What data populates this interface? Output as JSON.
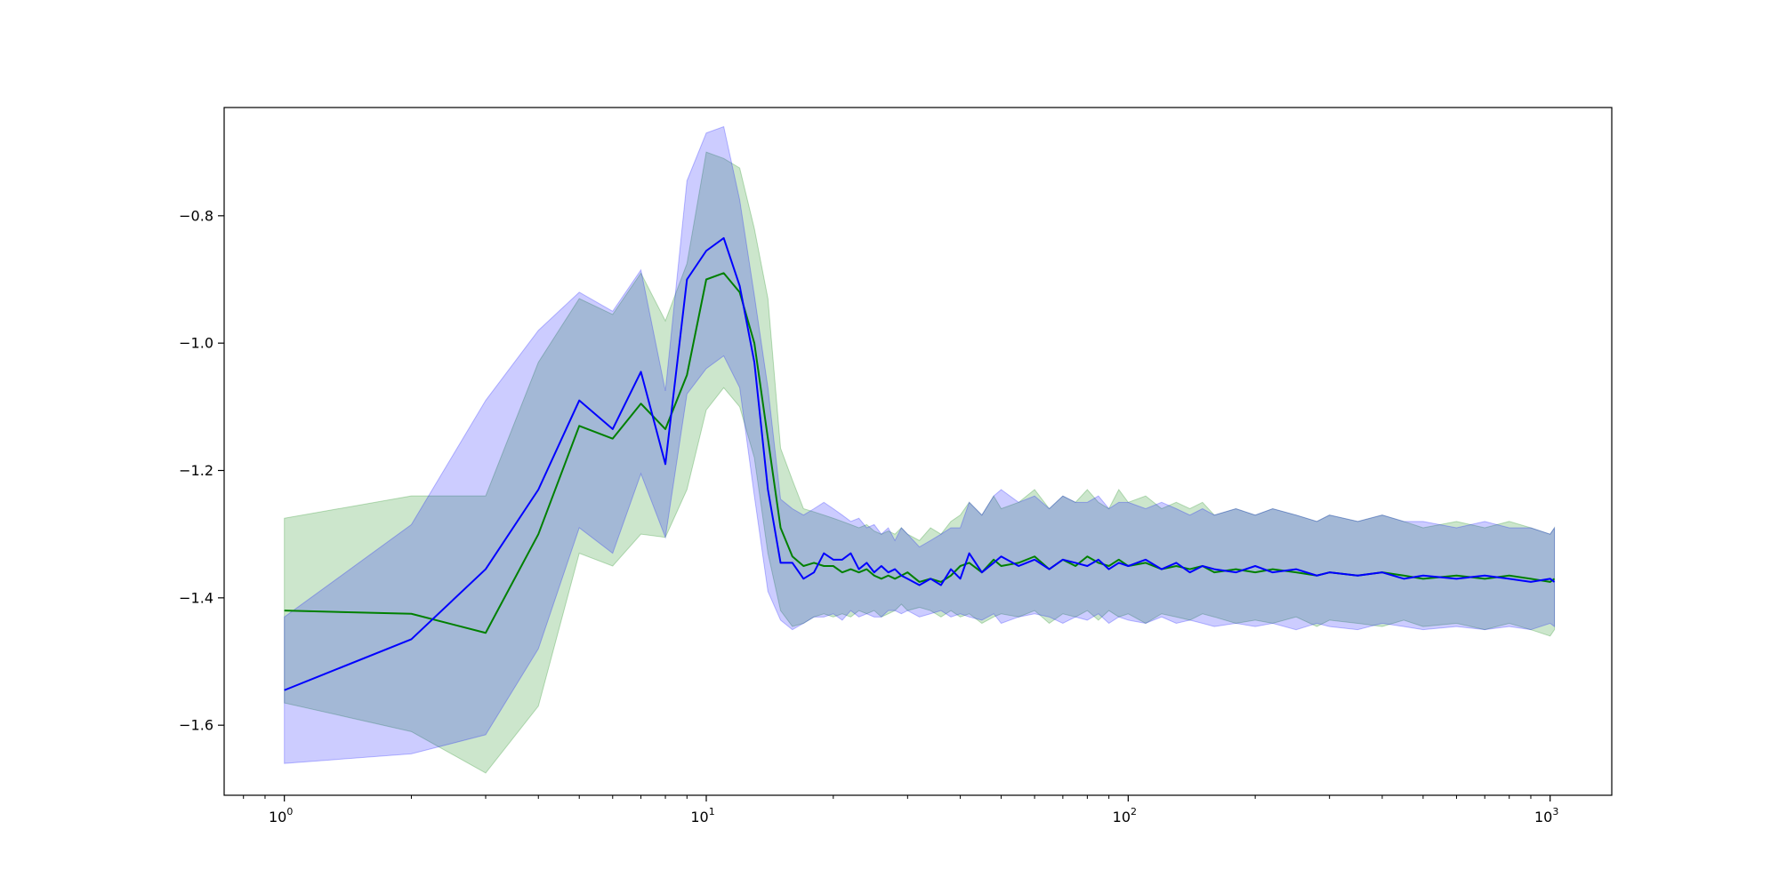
{
  "chart_data": {
    "type": "line",
    "xscale": "log",
    "xlim": [
      0.72,
      1400
    ],
    "ylim": [
      -1.71,
      -0.63
    ],
    "xlabel": "",
    "ylabel": "",
    "grid": false,
    "legend": "none",
    "x_ticks": [
      {
        "value": 1,
        "base": "10",
        "exp": "0"
      },
      {
        "value": 10,
        "base": "10",
        "exp": "1"
      },
      {
        "value": 100,
        "base": "10",
        "exp": "2"
      },
      {
        "value": 1000,
        "base": "10",
        "exp": "3"
      }
    ],
    "y_ticks": [
      {
        "value": -1.6,
        "label": "−1.6"
      },
      {
        "value": -1.4,
        "label": "−1.4"
      },
      {
        "value": -1.2,
        "label": "−1.2"
      },
      {
        "value": -1.0,
        "label": "−1.0"
      },
      {
        "value": -0.8,
        "label": "−0.8"
      }
    ],
    "band_alpha": 0.2,
    "series": [
      {
        "color": "#008000",
        "x": [
          1,
          2,
          3,
          4,
          5,
          6,
          7,
          8,
          9,
          10,
          11,
          12,
          13,
          14,
          15,
          16,
          17,
          18,
          19,
          20,
          21,
          22,
          23,
          24,
          25,
          26,
          27,
          28,
          29,
          30,
          32,
          34,
          36,
          38,
          40,
          42,
          45,
          48,
          50,
          55,
          60,
          65,
          70,
          75,
          80,
          85,
          90,
          95,
          100,
          110,
          120,
          130,
          140,
          150,
          160,
          180,
          200,
          220,
          250,
          280,
          300,
          350,
          400,
          450,
          500,
          600,
          700,
          800,
          900,
          1000,
          1024
        ],
        "y": [
          -1.42,
          -1.425,
          -1.455,
          -1.3,
          -1.13,
          -1.15,
          -1.095,
          -1.135,
          -1.05,
          -0.9,
          -0.89,
          -0.92,
          -1.0,
          -1.15,
          -1.29,
          -1.335,
          -1.35,
          -1.345,
          -1.35,
          -1.35,
          -1.36,
          -1.355,
          -1.36,
          -1.355,
          -1.365,
          -1.37,
          -1.365,
          -1.37,
          -1.365,
          -1.36,
          -1.375,
          -1.37,
          -1.375,
          -1.365,
          -1.35,
          -1.345,
          -1.36,
          -1.34,
          -1.35,
          -1.345,
          -1.335,
          -1.355,
          -1.34,
          -1.35,
          -1.335,
          -1.345,
          -1.35,
          -1.34,
          -1.35,
          -1.345,
          -1.355,
          -1.35,
          -1.355,
          -1.35,
          -1.36,
          -1.355,
          -1.36,
          -1.355,
          -1.36,
          -1.365,
          -1.36,
          -1.365,
          -1.36,
          -1.365,
          -1.37,
          -1.365,
          -1.37,
          -1.365,
          -1.37,
          -1.375,
          -1.37
        ],
        "lower": [
          -1.565,
          -1.61,
          -1.675,
          -1.57,
          -1.33,
          -1.35,
          -1.3,
          -1.305,
          -1.23,
          -1.105,
          -1.07,
          -1.1,
          -1.18,
          -1.33,
          -1.42,
          -1.445,
          -1.44,
          -1.43,
          -1.425,
          -1.43,
          -1.425,
          -1.43,
          -1.42,
          -1.425,
          -1.42,
          -1.43,
          -1.425,
          -1.42,
          -1.41,
          -1.42,
          -1.415,
          -1.42,
          -1.43,
          -1.42,
          -1.43,
          -1.425,
          -1.44,
          -1.43,
          -1.425,
          -1.43,
          -1.42,
          -1.44,
          -1.425,
          -1.43,
          -1.42,
          -1.435,
          -1.42,
          -1.43,
          -1.425,
          -1.44,
          -1.425,
          -1.43,
          -1.435,
          -1.425,
          -1.43,
          -1.44,
          -1.435,
          -1.44,
          -1.43,
          -1.445,
          -1.435,
          -1.44,
          -1.445,
          -1.435,
          -1.445,
          -1.44,
          -1.45,
          -1.44,
          -1.45,
          -1.46,
          -1.45
        ],
        "upper": [
          -1.275,
          -1.24,
          -1.24,
          -1.03,
          -0.93,
          -0.955,
          -0.89,
          -0.965,
          -0.875,
          -0.7,
          -0.71,
          -0.725,
          -0.82,
          -0.93,
          -1.165,
          -1.215,
          -1.26,
          -1.265,
          -1.27,
          -1.275,
          -1.28,
          -1.285,
          -1.29,
          -1.285,
          -1.295,
          -1.3,
          -1.295,
          -1.3,
          -1.29,
          -1.3,
          -1.31,
          -1.29,
          -1.3,
          -1.28,
          -1.27,
          -1.25,
          -1.27,
          -1.24,
          -1.26,
          -1.25,
          -1.23,
          -1.26,
          -1.24,
          -1.25,
          -1.23,
          -1.25,
          -1.26,
          -1.23,
          -1.25,
          -1.24,
          -1.26,
          -1.25,
          -1.26,
          -1.25,
          -1.27,
          -1.26,
          -1.27,
          -1.26,
          -1.27,
          -1.28,
          -1.27,
          -1.28,
          -1.27,
          -1.28,
          -1.29,
          -1.28,
          -1.29,
          -1.28,
          -1.29,
          -1.3,
          -1.29
        ]
      },
      {
        "color": "#0000ff",
        "x": [
          1,
          2,
          3,
          4,
          5,
          6,
          7,
          8,
          9,
          10,
          11,
          12,
          13,
          14,
          15,
          16,
          17,
          18,
          19,
          20,
          21,
          22,
          23,
          24,
          25,
          26,
          27,
          28,
          29,
          30,
          32,
          34,
          36,
          38,
          40,
          42,
          45,
          48,
          50,
          55,
          60,
          65,
          70,
          75,
          80,
          85,
          90,
          95,
          100,
          110,
          120,
          130,
          140,
          150,
          160,
          180,
          200,
          220,
          250,
          280,
          300,
          350,
          400,
          450,
          500,
          600,
          700,
          800,
          900,
          1000,
          1024
        ],
        "y": [
          -1.545,
          -1.465,
          -1.355,
          -1.23,
          -1.09,
          -1.135,
          -1.045,
          -1.19,
          -0.9,
          -0.855,
          -0.835,
          -0.91,
          -1.03,
          -1.23,
          -1.345,
          -1.345,
          -1.37,
          -1.36,
          -1.33,
          -1.34,
          -1.34,
          -1.33,
          -1.355,
          -1.345,
          -1.36,
          -1.35,
          -1.36,
          -1.355,
          -1.365,
          -1.37,
          -1.38,
          -1.37,
          -1.38,
          -1.355,
          -1.37,
          -1.33,
          -1.36,
          -1.345,
          -1.335,
          -1.35,
          -1.34,
          -1.355,
          -1.34,
          -1.345,
          -1.35,
          -1.34,
          -1.355,
          -1.345,
          -1.35,
          -1.34,
          -1.355,
          -1.345,
          -1.36,
          -1.35,
          -1.355,
          -1.36,
          -1.35,
          -1.36,
          -1.355,
          -1.365,
          -1.36,
          -1.365,
          -1.36,
          -1.37,
          -1.365,
          -1.37,
          -1.365,
          -1.37,
          -1.375,
          -1.37,
          -1.375
        ],
        "lower": [
          -1.66,
          -1.645,
          -1.615,
          -1.48,
          -1.29,
          -1.33,
          -1.205,
          -1.305,
          -1.08,
          -1.04,
          -1.02,
          -1.07,
          -1.24,
          -1.39,
          -1.435,
          -1.45,
          -1.44,
          -1.43,
          -1.43,
          -1.425,
          -1.435,
          -1.42,
          -1.43,
          -1.425,
          -1.43,
          -1.43,
          -1.42,
          -1.42,
          -1.425,
          -1.42,
          -1.43,
          -1.425,
          -1.42,
          -1.43,
          -1.425,
          -1.43,
          -1.435,
          -1.425,
          -1.44,
          -1.43,
          -1.425,
          -1.43,
          -1.44,
          -1.43,
          -1.435,
          -1.425,
          -1.44,
          -1.43,
          -1.435,
          -1.44,
          -1.43,
          -1.44,
          -1.435,
          -1.44,
          -1.445,
          -1.44,
          -1.445,
          -1.44,
          -1.45,
          -1.44,
          -1.445,
          -1.45,
          -1.44,
          -1.445,
          -1.45,
          -1.445,
          -1.45,
          -1.445,
          -1.45,
          -1.44,
          -1.445
        ],
        "upper": [
          -1.43,
          -1.285,
          -1.09,
          -0.98,
          -0.92,
          -0.95,
          -0.885,
          -1.075,
          -0.745,
          -0.67,
          -0.66,
          -0.775,
          -0.925,
          -1.07,
          -1.245,
          -1.26,
          -1.27,
          -1.26,
          -1.25,
          -1.26,
          -1.27,
          -1.28,
          -1.275,
          -1.29,
          -1.285,
          -1.3,
          -1.29,
          -1.31,
          -1.29,
          -1.3,
          -1.32,
          -1.31,
          -1.3,
          -1.29,
          -1.29,
          -1.25,
          -1.27,
          -1.24,
          -1.23,
          -1.25,
          -1.24,
          -1.26,
          -1.24,
          -1.25,
          -1.25,
          -1.24,
          -1.26,
          -1.25,
          -1.25,
          -1.26,
          -1.25,
          -1.26,
          -1.27,
          -1.26,
          -1.27,
          -1.26,
          -1.27,
          -1.26,
          -1.27,
          -1.28,
          -1.27,
          -1.28,
          -1.27,
          -1.28,
          -1.28,
          -1.29,
          -1.28,
          -1.29,
          -1.29,
          -1.3,
          -1.29
        ]
      }
    ]
  }
}
